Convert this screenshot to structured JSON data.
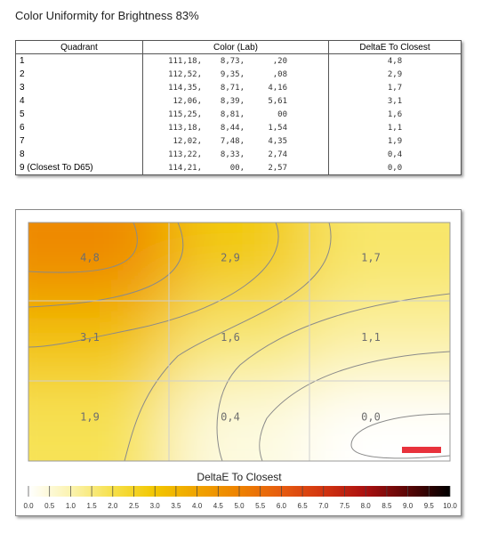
{
  "title": "Color Uniformity for Brightness 83%",
  "table": {
    "header": [
      "Quadrant",
      "Color (Lab)",
      "DeltaE To Closest"
    ],
    "rows": [
      [
        "1",
        [
          "111,18,",
          "8,73,",
          ",20"
        ],
        "4,8"
      ],
      [
        "2",
        [
          "112,52,",
          "9,35,",
          ",08"
        ],
        "2,9"
      ],
      [
        "3",
        [
          "114,35,",
          "8,71,",
          "4,16"
        ],
        "1,7"
      ],
      [
        "4",
        [
          "12,06,",
          "8,39,",
          "5,61"
        ],
        "3,1"
      ],
      [
        "5",
        [
          "115,25,",
          "8,81,",
          "00"
        ],
        "1,6"
      ],
      [
        "6",
        [
          "113,18,",
          "8,44,",
          "1,54"
        ],
        "1,1"
      ],
      [
        "7",
        [
          "12,02,",
          "7,48,",
          "4,35"
        ],
        "1,9"
      ],
      [
        "8",
        [
          "113,22,",
          "8,33,",
          "2,74"
        ],
        "0,4"
      ],
      [
        "9 (Closest To D65)",
        [
          "114,21,",
          "00,",
          "2,57"
        ],
        "0,0"
      ]
    ]
  },
  "chart_data": {
    "type": "heatmap",
    "title": "DeltaE To Closest",
    "values": [
      [
        4.8,
        2.9,
        1.7
      ],
      [
        3.1,
        1.6,
        1.1
      ],
      [
        1.9,
        0.4,
        0.0
      ]
    ],
    "value_labels": [
      [
        "4,8",
        "2,9",
        "1,7"
      ],
      [
        "3,1",
        "1,6",
        "1,1"
      ],
      [
        "1,9",
        "0,4",
        "0,0"
      ]
    ],
    "clim": [
      0,
      10
    ],
    "colorscale": [
      "#ffffff",
      "#fbf3b0",
      "#f6e04a",
      "#f2c600",
      "#f0a400",
      "#ee8200",
      "#e65c10",
      "#d23410",
      "#aa1010",
      "#5a0606",
      "#000000"
    ],
    "cticks": [
      {
        "value": 0,
        "label": "0.0"
      },
      {
        "value": 0.5,
        "label": "0.5"
      },
      {
        "value": 1,
        "label": "1.0"
      },
      {
        "value": 1.5,
        "label": "1.5"
      },
      {
        "value": 2,
        "label": "2.0"
      },
      {
        "value": 2.5,
        "label": "2.5"
      },
      {
        "value": 3,
        "label": "3.0"
      },
      {
        "value": 3.5,
        "label": "3.5"
      },
      {
        "value": 4,
        "label": "4.0"
      },
      {
        "value": 4.5,
        "label": "4.5"
      },
      {
        "value": 5,
        "label": "5.0"
      },
      {
        "value": 5.5,
        "label": "5.5"
      },
      {
        "value": 6,
        "label": "6.0"
      },
      {
        "value": 6.5,
        "label": "6.5"
      },
      {
        "value": 7,
        "label": "7.0"
      },
      {
        "value": 7.5,
        "label": "7.5"
      },
      {
        "value": 8,
        "label": "8.0"
      },
      {
        "value": 8.5,
        "label": "8.5"
      },
      {
        "value": 9,
        "label": "9.0"
      },
      {
        "value": 9.5,
        "label": "9.5"
      },
      {
        "value": 10,
        "label": "10.0"
      }
    ]
  }
}
